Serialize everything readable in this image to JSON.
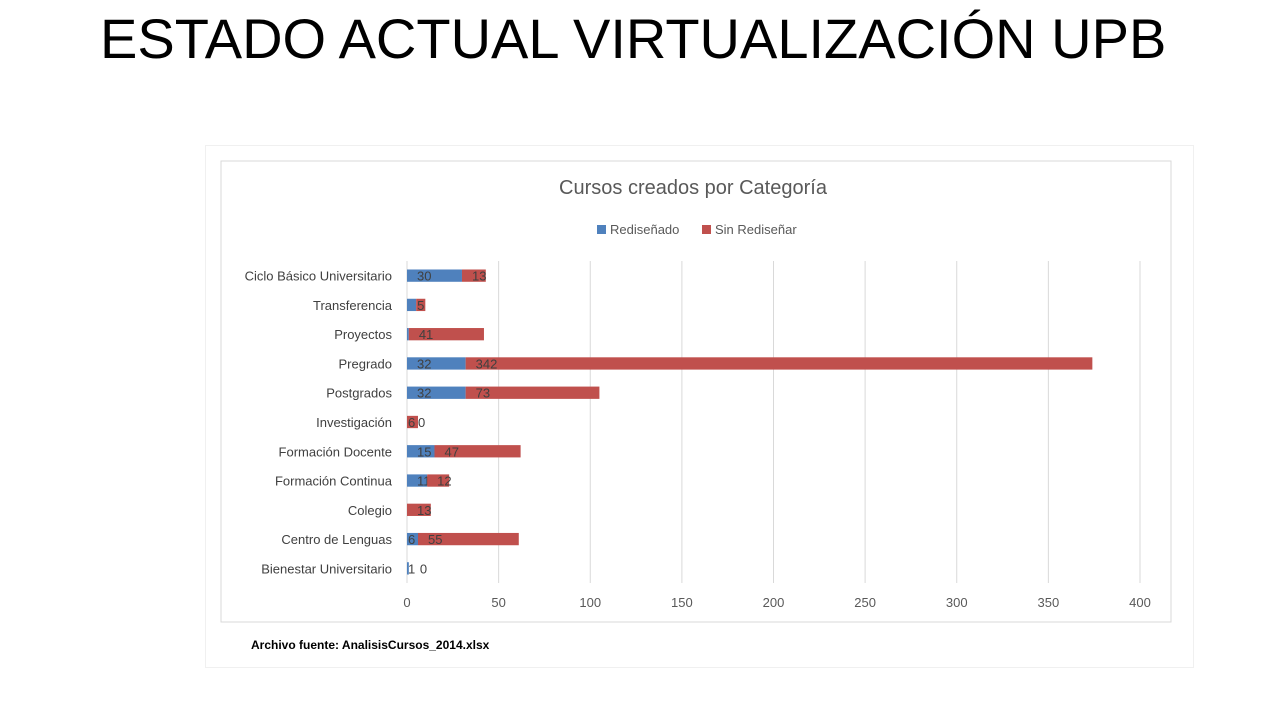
{
  "slide": {
    "title": "ESTADO ACTUAL VIRTUALIZACIÓN UPB"
  },
  "chart_data": {
    "type": "bar",
    "orientation": "horizontal",
    "stacked": true,
    "title": "Cursos creados por Categoría",
    "categories": [
      "Ciclo Básico Universitario",
      "Transferencia",
      "Proyectos",
      "Pregrado",
      "Postgrados",
      "Investigación",
      "Formación Docente",
      "Formación Continua",
      "Colegio",
      "Centro de Lenguas",
      "Bienestar Universitario"
    ],
    "series": [
      {
        "name": "Rediseñado",
        "color": "#4f81bd",
        "values": [
          30,
          5,
          1,
          32,
          32,
          0,
          15,
          11,
          0,
          6,
          1
        ]
      },
      {
        "name": "Sin Rediseñar",
        "color": "#c0504d",
        "values": [
          13,
          5,
          41,
          342,
          73,
          6,
          47,
          12,
          13,
          55,
          0
        ]
      }
    ],
    "value_labels": [
      [
        "30",
        "13"
      ],
      [
        "",
        "5"
      ],
      [
        "1",
        "41"
      ],
      [
        "32",
        "342"
      ],
      [
        "32",
        "73"
      ],
      [
        "0",
        "6"
      ],
      [
        "15",
        "47"
      ],
      [
        "11",
        "12"
      ],
      [
        "0",
        "13"
      ],
      [
        "6",
        "55"
      ],
      [
        "1",
        "0"
      ]
    ],
    "xlim": [
      0,
      400
    ],
    "xticks": [
      0,
      50,
      100,
      150,
      200,
      250,
      300,
      350,
      400
    ],
    "grid": "vertical",
    "legend_position": "top",
    "footnote": "Archivo fuente: AnalisisCursos_2014.xlsx"
  }
}
